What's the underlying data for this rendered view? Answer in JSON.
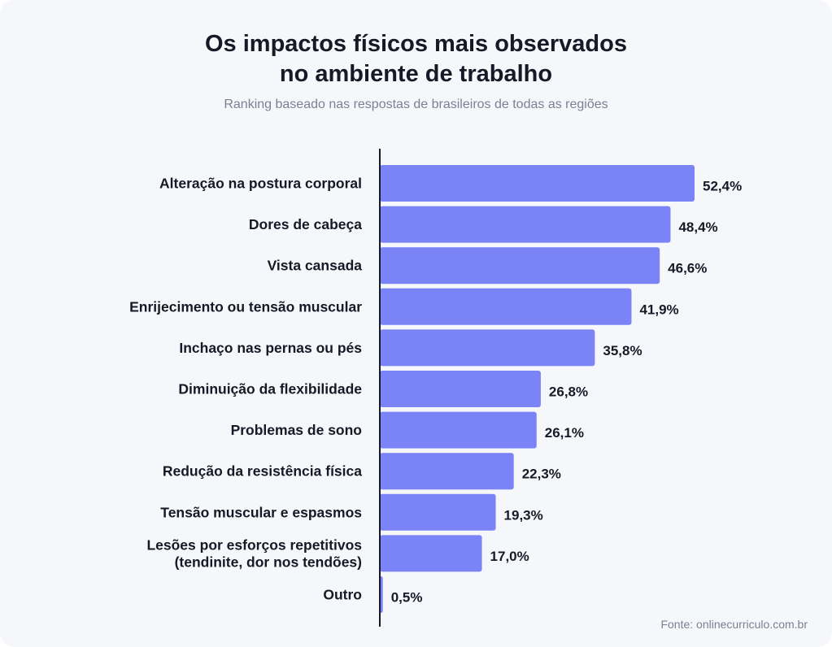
{
  "chart_data": {
    "type": "bar",
    "orientation": "horizontal",
    "title_lines": [
      "Os impactos físicos mais observados",
      "no ambiente de trabalho"
    ],
    "subtitle": "Ranking baseado nas respostas de brasileiros de todas as regiões",
    "categories": [
      [
        "Alteração na postura corporal"
      ],
      [
        "Dores de cabeça"
      ],
      [
        "Vista cansada"
      ],
      [
        "Enrijecimento ou tensão muscular"
      ],
      [
        "Inchaço nas pernas ou pés"
      ],
      [
        "Diminuição da flexibilidade"
      ],
      [
        "Problemas de sono"
      ],
      [
        "Redução da resistência física"
      ],
      [
        "Tensão muscular e espasmos"
      ],
      [
        "Lesões por esforços repetitivos",
        "(tendinite, dor nos tendões)"
      ],
      [
        "Outro"
      ]
    ],
    "values": [
      52.4,
      48.4,
      46.6,
      41.9,
      35.8,
      26.8,
      26.1,
      22.3,
      19.3,
      17.0,
      0.5
    ],
    "value_labels": [
      "52,4%",
      "48,4%",
      "46,6%",
      "41,9%",
      "35,8%",
      "26,8%",
      "26,1%",
      "22,3%",
      "19,3%",
      "17,0%",
      "0,5%"
    ],
    "bar_color": "#7b84f6",
    "source": "Fonte: onlinecurriculo.com.br"
  }
}
